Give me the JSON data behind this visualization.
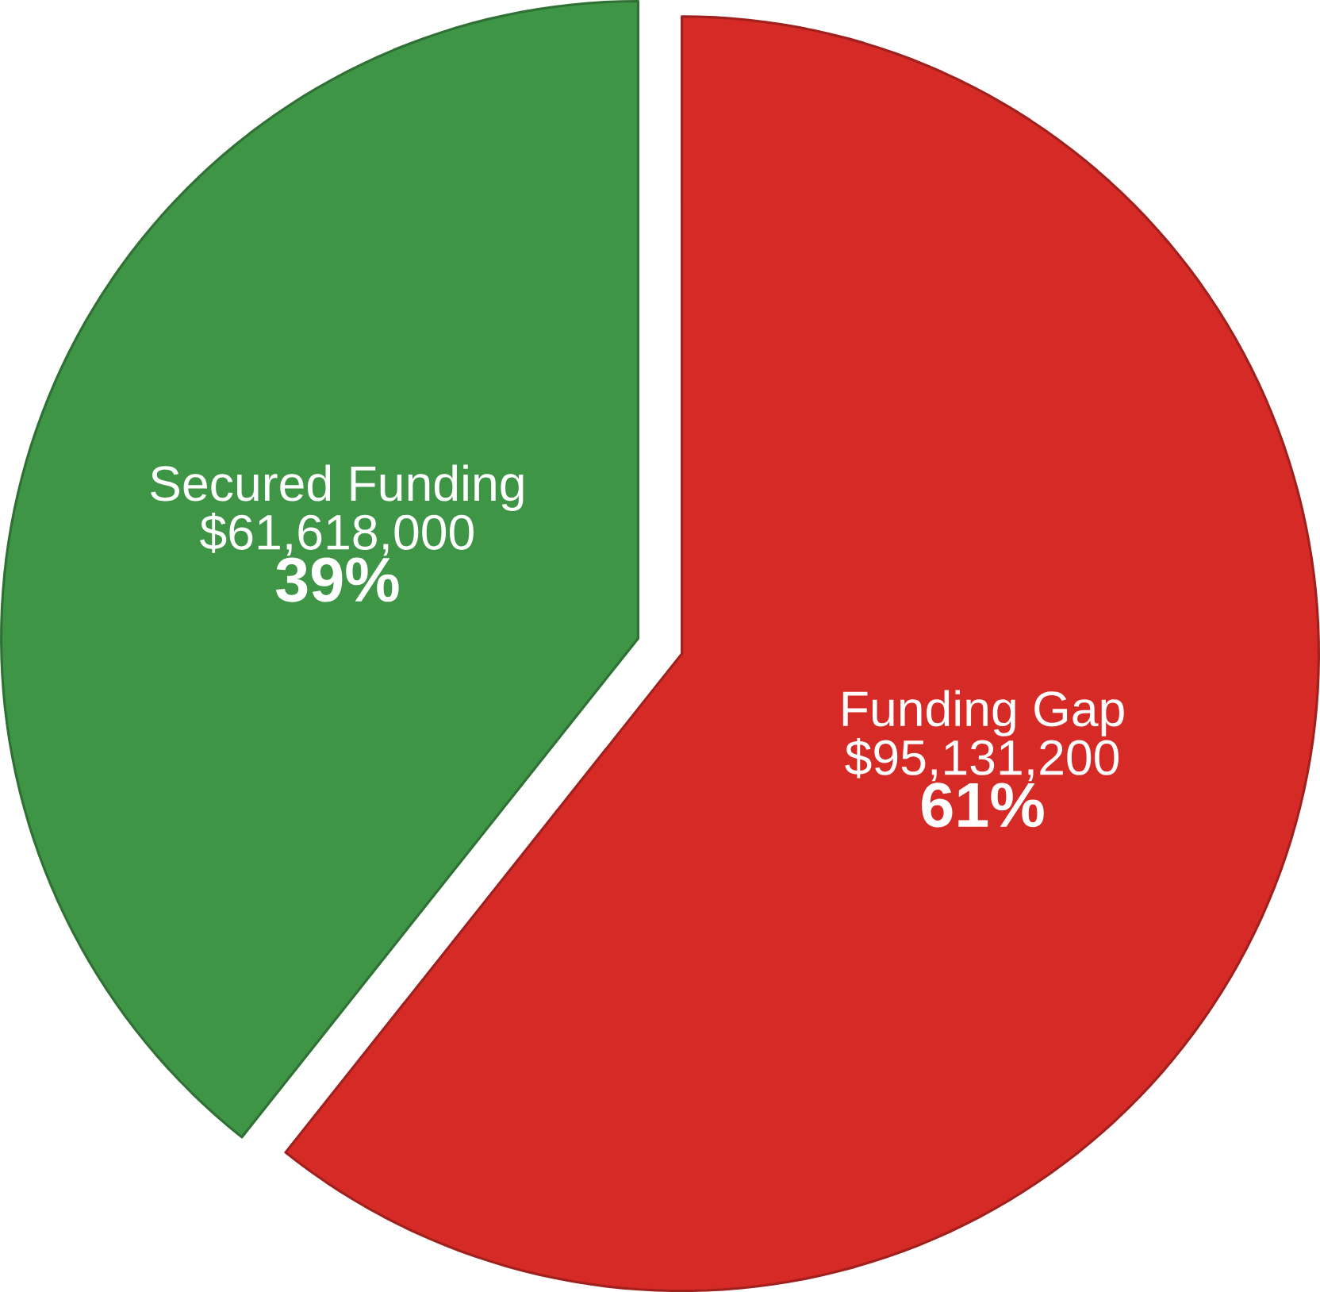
{
  "chart_data": {
    "type": "pie",
    "categories": [
      "Secured Funding",
      "Funding Gap"
    ],
    "values": [
      61618000,
      95131200
    ],
    "colors": [
      "#3f9546",
      "#d62a27"
    ],
    "value_labels": [
      "$61,618,000",
      "$95,131,200"
    ],
    "annotations": [
      "39%",
      "61%"
    ]
  }
}
